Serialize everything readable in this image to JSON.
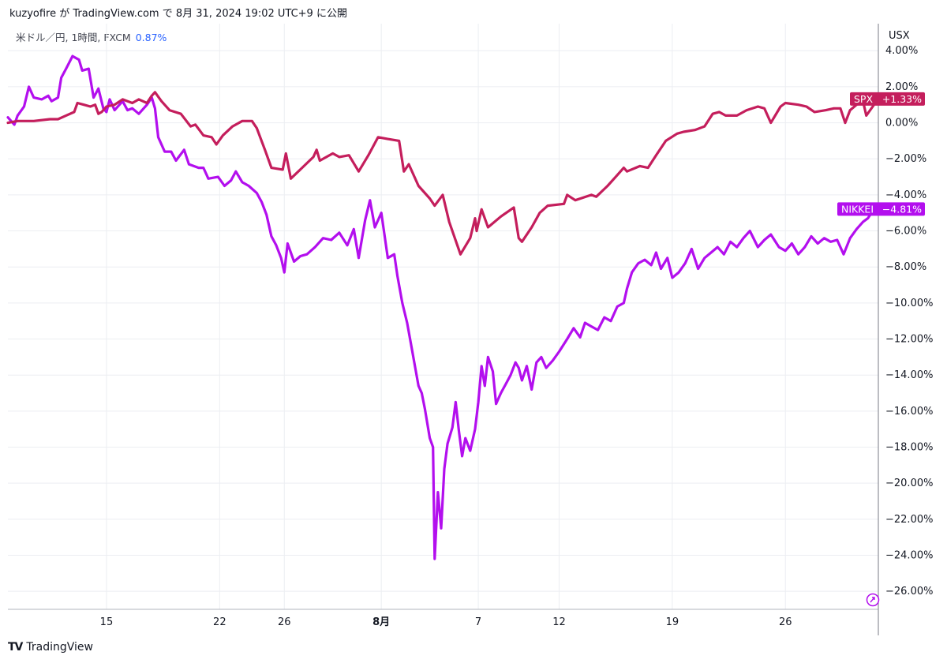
{
  "header": {
    "text": "kuzyofire が TradingView.com で 8月 31, 2024 19:02 UTC+9 に公開"
  },
  "legend": {
    "symbol": "米ドル／円, 1時間, FXCM",
    "change": "0.87%"
  },
  "currency_label": "USX",
  "footer": {
    "logo": "TV",
    "brand": "TradingView"
  },
  "colors": {
    "spx": "#c41e5c",
    "nikkei": "#b30fee",
    "grid": "#eceef2",
    "axis": "#787b86"
  },
  "chart_data": {
    "type": "line",
    "title": "",
    "ylabel": "",
    "xlabel": "",
    "ylim": [
      -27,
      5.5
    ],
    "grid": true,
    "x_ticks": [
      {
        "day": 15,
        "label": "15"
      },
      {
        "day": 22,
        "label": "22"
      },
      {
        "day": 26,
        "label": "26"
      },
      {
        "day": 32,
        "label": "8月"
      },
      {
        "day": 38,
        "label": "7"
      },
      {
        "day": 43,
        "label": "12"
      },
      {
        "day": 50,
        "label": "19"
      },
      {
        "day": 57,
        "label": "26"
      }
    ],
    "y_ticks": [
      {
        "value": 4,
        "label": "4.00%"
      },
      {
        "value": 2,
        "label": "2.00%"
      },
      {
        "value": 0,
        "label": "0.00%"
      },
      {
        "value": -2,
        "label": "−2.00%"
      },
      {
        "value": -4,
        "label": "−4.00%"
      },
      {
        "value": -6,
        "label": "−6.00%"
      },
      {
        "value": -8,
        "label": "−8.00%"
      },
      {
        "value": -10,
        "label": "−10.00%"
      },
      {
        "value": -12,
        "label": "−12.00%"
      },
      {
        "value": -14,
        "label": "−14.00%"
      },
      {
        "value": -16,
        "label": "−16.00%"
      },
      {
        "value": -18,
        "label": "−18.00%"
      },
      {
        "value": -20,
        "label": "−20.00%"
      },
      {
        "value": -22,
        "label": "−22.00%"
      },
      {
        "value": -24,
        "label": "−24.00%"
      },
      {
        "value": -26,
        "label": "−26.00%"
      }
    ],
    "xlim": [
      8.9,
      62.7
    ],
    "series": [
      {
        "name": "SPX",
        "label": "+1.33%",
        "points": [
          [
            8.9,
            0.0
          ],
          [
            9.5,
            0.1
          ],
          [
            10.5,
            0.1
          ],
          [
            11.5,
            0.2
          ],
          [
            12.0,
            0.2
          ],
          [
            12.5,
            0.4
          ],
          [
            13.0,
            0.6
          ],
          [
            13.2,
            1.1
          ],
          [
            13.6,
            1.0
          ],
          [
            14.0,
            0.9
          ],
          [
            14.3,
            1.0
          ],
          [
            14.5,
            0.5
          ],
          [
            14.7,
            0.6
          ],
          [
            15.0,
            0.9
          ],
          [
            15.5,
            1.0
          ],
          [
            16.0,
            1.3
          ],
          [
            16.3,
            1.2
          ],
          [
            16.6,
            1.1
          ],
          [
            17.0,
            1.3
          ],
          [
            17.5,
            1.1
          ],
          [
            17.8,
            1.5
          ],
          [
            18.0,
            1.7
          ],
          [
            18.4,
            1.2
          ],
          [
            18.9,
            0.7
          ],
          [
            19.6,
            0.5
          ],
          [
            20.2,
            -0.2
          ],
          [
            20.5,
            -0.1
          ],
          [
            21.0,
            -0.7
          ],
          [
            21.5,
            -0.8
          ],
          [
            21.8,
            -1.2
          ],
          [
            22.2,
            -0.7
          ],
          [
            22.8,
            -0.2
          ],
          [
            23.4,
            0.1
          ],
          [
            24.0,
            0.1
          ],
          [
            24.3,
            -0.3
          ],
          [
            24.8,
            -1.5
          ],
          [
            25.2,
            -2.5
          ],
          [
            25.9,
            -2.6
          ],
          [
            26.1,
            -1.7
          ],
          [
            26.4,
            -3.1
          ],
          [
            27.1,
            -2.5
          ],
          [
            27.8,
            -1.9
          ],
          [
            28.0,
            -1.5
          ],
          [
            28.2,
            -2.1
          ],
          [
            29.0,
            -1.7
          ],
          [
            29.4,
            -1.9
          ],
          [
            30.0,
            -1.8
          ],
          [
            30.6,
            -2.7
          ],
          [
            31.2,
            -1.8
          ],
          [
            31.8,
            -0.8
          ],
          [
            32.4,
            -0.9
          ],
          [
            33.1,
            -1.0
          ],
          [
            33.4,
            -2.7
          ],
          [
            33.7,
            -2.3
          ],
          [
            34.3,
            -3.5
          ],
          [
            35.0,
            -4.2
          ],
          [
            35.3,
            -4.6
          ],
          [
            35.8,
            -4.0
          ],
          [
            36.2,
            -5.5
          ],
          [
            36.9,
            -7.3
          ],
          [
            37.5,
            -6.4
          ],
          [
            37.8,
            -5.3
          ],
          [
            37.9,
            -6.0
          ],
          [
            38.2,
            -4.8
          ],
          [
            38.6,
            -5.8
          ],
          [
            39.4,
            -5.2
          ],
          [
            40.2,
            -4.7
          ],
          [
            40.5,
            -6.4
          ],
          [
            40.7,
            -6.6
          ],
          [
            41.3,
            -5.8
          ],
          [
            41.8,
            -5.0
          ],
          [
            42.3,
            -4.6
          ],
          [
            43.3,
            -4.5
          ],
          [
            43.5,
            -4.0
          ],
          [
            44.0,
            -4.3
          ],
          [
            45.0,
            -4.0
          ],
          [
            45.3,
            -4.1
          ],
          [
            46.0,
            -3.5
          ],
          [
            46.5,
            -3.0
          ],
          [
            47.0,
            -2.5
          ],
          [
            47.2,
            -2.7
          ],
          [
            48.0,
            -2.4
          ],
          [
            48.5,
            -2.5
          ],
          [
            49.0,
            -1.8
          ],
          [
            49.6,
            -1.0
          ],
          [
            50.3,
            -0.6
          ],
          [
            50.7,
            -0.5
          ],
          [
            51.4,
            -0.4
          ],
          [
            52.0,
            -0.2
          ],
          [
            52.5,
            0.5
          ],
          [
            52.9,
            0.6
          ],
          [
            53.3,
            0.4
          ],
          [
            54.0,
            0.4
          ],
          [
            54.6,
            0.7
          ],
          [
            55.3,
            0.9
          ],
          [
            55.7,
            0.8
          ],
          [
            56.1,
            0.0
          ],
          [
            56.7,
            0.9
          ],
          [
            57.0,
            1.1
          ],
          [
            57.8,
            1.0
          ],
          [
            58.3,
            0.9
          ],
          [
            58.8,
            0.6
          ],
          [
            59.5,
            0.7
          ],
          [
            60.0,
            0.8
          ],
          [
            60.4,
            0.8
          ],
          [
            60.7,
            0.0
          ],
          [
            61.0,
            0.7
          ],
          [
            61.4,
            1.0
          ],
          [
            61.8,
            1.2
          ],
          [
            62.0,
            0.4
          ],
          [
            62.4,
            0.9
          ],
          [
            62.7,
            1.3
          ]
        ]
      },
      {
        "name": "NIKKEI",
        "label": "−4.81%",
        "points": [
          [
            8.9,
            0.3
          ],
          [
            9.3,
            -0.1
          ],
          [
            9.5,
            0.4
          ],
          [
            9.9,
            0.9
          ],
          [
            10.2,
            2.0
          ],
          [
            10.5,
            1.4
          ],
          [
            11.0,
            1.3
          ],
          [
            11.4,
            1.5
          ],
          [
            11.6,
            1.2
          ],
          [
            12.0,
            1.4
          ],
          [
            12.2,
            2.5
          ],
          [
            12.5,
            3.0
          ],
          [
            12.9,
            3.7
          ],
          [
            13.3,
            3.5
          ],
          [
            13.5,
            2.9
          ],
          [
            13.9,
            3.0
          ],
          [
            14.2,
            1.4
          ],
          [
            14.5,
            1.9
          ],
          [
            14.8,
            0.8
          ],
          [
            15.0,
            0.6
          ],
          [
            15.2,
            1.3
          ],
          [
            15.5,
            0.7
          ],
          [
            16.0,
            1.2
          ],
          [
            16.3,
            0.7
          ],
          [
            16.6,
            0.8
          ],
          [
            17.0,
            0.5
          ],
          [
            17.5,
            1.0
          ],
          [
            17.8,
            1.4
          ],
          [
            18.0,
            0.8
          ],
          [
            18.2,
            -0.8
          ],
          [
            18.6,
            -1.6
          ],
          [
            19.0,
            -1.6
          ],
          [
            19.3,
            -2.1
          ],
          [
            19.8,
            -1.5
          ],
          [
            20.1,
            -2.3
          ],
          [
            20.7,
            -2.5
          ],
          [
            21.0,
            -2.5
          ],
          [
            21.3,
            -3.1
          ],
          [
            21.9,
            -3.0
          ],
          [
            22.3,
            -3.5
          ],
          [
            22.7,
            -3.2
          ],
          [
            23.0,
            -2.7
          ],
          [
            23.4,
            -3.3
          ],
          [
            23.8,
            -3.5
          ],
          [
            24.3,
            -3.9
          ],
          [
            24.6,
            -4.4
          ],
          [
            24.9,
            -5.1
          ],
          [
            25.2,
            -6.3
          ],
          [
            25.5,
            -6.8
          ],
          [
            25.8,
            -7.5
          ],
          [
            26.0,
            -8.3
          ],
          [
            26.2,
            -6.7
          ],
          [
            26.6,
            -7.7
          ],
          [
            27.0,
            -7.4
          ],
          [
            27.4,
            -7.3
          ],
          [
            27.9,
            -6.9
          ],
          [
            28.4,
            -6.4
          ],
          [
            28.9,
            -6.5
          ],
          [
            29.4,
            -6.1
          ],
          [
            29.9,
            -6.8
          ],
          [
            30.3,
            -5.9
          ],
          [
            30.6,
            -7.5
          ],
          [
            31.0,
            -5.4
          ],
          [
            31.3,
            -4.3
          ],
          [
            31.6,
            -5.8
          ],
          [
            31.8,
            -5.4
          ],
          [
            32.0,
            -5.0
          ],
          [
            32.4,
            -7.5
          ],
          [
            32.8,
            -7.3
          ],
          [
            33.0,
            -8.5
          ],
          [
            33.3,
            -10.0
          ],
          [
            33.6,
            -11.1
          ],
          [
            33.9,
            -12.6
          ],
          [
            34.1,
            -13.6
          ],
          [
            34.3,
            -14.6
          ],
          [
            34.5,
            -15.0
          ],
          [
            34.7,
            -15.9
          ],
          [
            35.0,
            -17.5
          ],
          [
            35.2,
            -18.0
          ],
          [
            35.3,
            -24.2
          ],
          [
            35.5,
            -20.5
          ],
          [
            35.7,
            -22.5
          ],
          [
            35.9,
            -19.2
          ],
          [
            36.1,
            -17.8
          ],
          [
            36.4,
            -16.9
          ],
          [
            36.6,
            -15.5
          ],
          [
            36.8,
            -17.1
          ],
          [
            37.0,
            -18.5
          ],
          [
            37.2,
            -17.5
          ],
          [
            37.5,
            -18.2
          ],
          [
            37.8,
            -17.0
          ],
          [
            38.0,
            -15.5
          ],
          [
            38.2,
            -13.5
          ],
          [
            38.4,
            -14.6
          ],
          [
            38.6,
            -13.0
          ],
          [
            38.9,
            -13.8
          ],
          [
            39.1,
            -15.6
          ],
          [
            39.4,
            -15.0
          ],
          [
            39.7,
            -14.5
          ],
          [
            40.0,
            -14.0
          ],
          [
            40.3,
            -13.3
          ],
          [
            40.5,
            -13.6
          ],
          [
            40.7,
            -14.3
          ],
          [
            41.0,
            -13.5
          ],
          [
            41.3,
            -14.8
          ],
          [
            41.6,
            -13.3
          ],
          [
            41.9,
            -13.0
          ],
          [
            42.2,
            -13.6
          ],
          [
            42.6,
            -13.2
          ],
          [
            43.0,
            -12.7
          ],
          [
            43.5,
            -12.0
          ],
          [
            43.9,
            -11.4
          ],
          [
            44.3,
            -11.9
          ],
          [
            44.6,
            -11.1
          ],
          [
            45.0,
            -11.3
          ],
          [
            45.4,
            -11.5
          ],
          [
            45.8,
            -10.8
          ],
          [
            46.2,
            -11.0
          ],
          [
            46.6,
            -10.2
          ],
          [
            47.0,
            -10.0
          ],
          [
            47.2,
            -9.2
          ],
          [
            47.5,
            -8.3
          ],
          [
            47.9,
            -7.8
          ],
          [
            48.3,
            -7.6
          ],
          [
            48.7,
            -7.9
          ],
          [
            49.0,
            -7.2
          ],
          [
            49.3,
            -8.1
          ],
          [
            49.7,
            -7.5
          ],
          [
            50.0,
            -8.6
          ],
          [
            50.4,
            -8.3
          ],
          [
            50.8,
            -7.8
          ],
          [
            51.2,
            -7.0
          ],
          [
            51.6,
            -8.1
          ],
          [
            52.0,
            -7.5
          ],
          [
            52.4,
            -7.2
          ],
          [
            52.8,
            -6.9
          ],
          [
            53.2,
            -7.3
          ],
          [
            53.6,
            -6.6
          ],
          [
            54.0,
            -6.9
          ],
          [
            54.4,
            -6.4
          ],
          [
            54.8,
            -6.0
          ],
          [
            55.3,
            -6.9
          ],
          [
            55.7,
            -6.5
          ],
          [
            56.1,
            -6.2
          ],
          [
            56.6,
            -6.9
          ],
          [
            57.0,
            -7.1
          ],
          [
            57.4,
            -6.7
          ],
          [
            57.8,
            -7.3
          ],
          [
            58.2,
            -6.9
          ],
          [
            58.6,
            -6.3
          ],
          [
            59.0,
            -6.7
          ],
          [
            59.4,
            -6.4
          ],
          [
            59.8,
            -6.6
          ],
          [
            60.2,
            -6.5
          ],
          [
            60.6,
            -7.3
          ],
          [
            61.0,
            -6.4
          ],
          [
            61.4,
            -5.9
          ],
          [
            61.8,
            -5.5
          ],
          [
            62.1,
            -5.3
          ],
          [
            62.4,
            -4.9
          ],
          [
            62.7,
            -4.81
          ]
        ]
      }
    ]
  }
}
